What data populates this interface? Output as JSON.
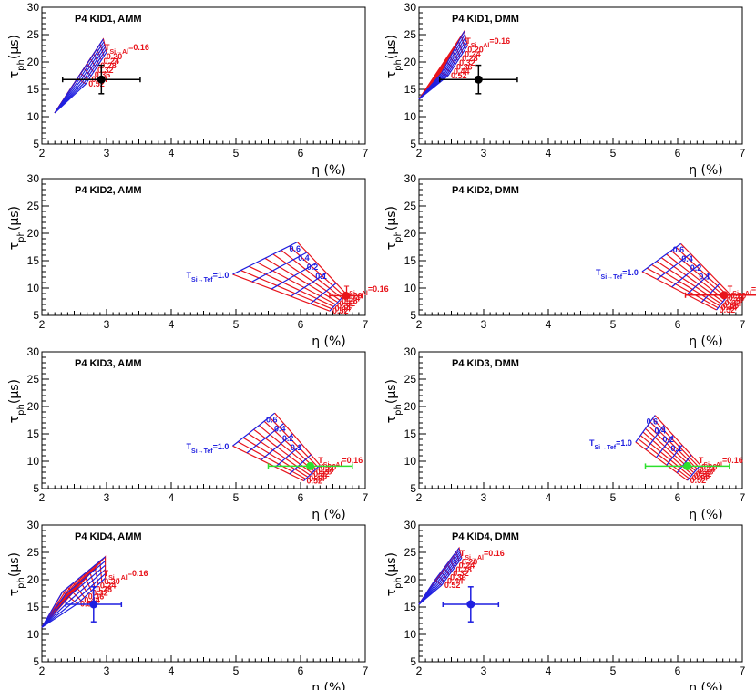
{
  "figure": {
    "xlabel": "η (%)",
    "ylabel_main": "τ",
    "ylabel_sub": "ph",
    "ylabel_unit": "(μs)"
  },
  "colors": {
    "al_lines": "#e8141b",
    "tef_lines": "#1f1fe0",
    "axis": "#000000"
  },
  "chart_data": [
    {
      "type": "line",
      "title": "P4 KID1, AMM",
      "xlabel": "η (%)",
      "ylabel": "τph(μs)",
      "xlim": [
        2,
        7
      ],
      "ylim": [
        5,
        30
      ],
      "x_ticks": [
        "2",
        "3",
        "4",
        "5",
        "6",
        "7"
      ],
      "y_ticks": [
        "5",
        "10",
        "15",
        "20",
        "25",
        "30"
      ],
      "grid": {
        "corners": {
          "tl": [
            2.95,
            24.2
          ],
          "bl": [
            2.55,
            17.0
          ],
          "tr": [
            3.0,
            21.8
          ],
          "br": [
            2.68,
            16.0
          ]
        },
        "apex": [
          2.2,
          10.7
        ],
        "n_al": 9,
        "n_tef": 6
      },
      "al_label_prefix": "T",
      "al_label_sub": "Si→Al",
      "al_first_value": "=0.16",
      "al_labels": [
        "0.20",
        "0.24",
        "0.28",
        "0.32",
        "0.36",
        "0.44",
        "0.52"
      ],
      "tef_label_prefix": "",
      "tef_label_sub": "",
      "tef_labels": [],
      "measurement": {
        "x": 2.92,
        "y": 16.8,
        "xerr": 0.6,
        "yerr": 2.6,
        "color": "#000000"
      }
    },
    {
      "type": "line",
      "title": "P4 KID1, DMM",
      "xlabel": "η (%)",
      "ylabel": "τph(μs)",
      "xlim": [
        2,
        7
      ],
      "ylim": [
        5,
        30
      ],
      "x_ticks": [
        "2",
        "3",
        "4",
        "5",
        "6",
        "7"
      ],
      "y_ticks": [
        "5",
        "10",
        "15",
        "20",
        "25",
        "30"
      ],
      "grid": {
        "corners": {
          "tl": [
            2.7,
            25.6
          ],
          "bl": [
            2.35,
            18.0
          ],
          "tr": [
            2.75,
            23.0
          ],
          "br": [
            2.45,
            17.5
          ]
        },
        "apex": [
          2.0,
          13.2
        ],
        "n_al": 9,
        "n_tef": 6
      },
      "al_label_prefix": "T",
      "al_label_sub": "Si→Al",
      "al_first_value": "=0.16",
      "al_labels": [
        "0.20",
        "0.24",
        "0.28",
        "0.32",
        "0.36",
        "0.44",
        "0.52"
      ],
      "tef_label_prefix": "",
      "tef_label_sub": "",
      "tef_labels": [],
      "measurement": {
        "x": 2.92,
        "y": 16.8,
        "xerr": 0.6,
        "yerr": 2.6,
        "color": "#000000"
      }
    },
    {
      "type": "line",
      "title": "P4 KID2, AMM",
      "xlabel": "η (%)",
      "ylabel": "τph(μs)",
      "xlim": [
        2,
        7
      ],
      "ylim": [
        5,
        30
      ],
      "x_ticks": [
        "2",
        "3",
        "4",
        "5",
        "6",
        "7"
      ],
      "y_ticks": [
        "5",
        "10",
        "15",
        "20",
        "25",
        "30"
      ],
      "grid": {
        "corners": {
          "tl": [
            5.95,
            18.4
          ],
          "bl": [
            4.95,
            12.5
          ],
          "tr": [
            6.7,
            9.0
          ],
          "br": [
            6.45,
            5.8
          ]
        },
        "n_al": 9,
        "n_tef": 6
      },
      "al_label_prefix": "T",
      "al_label_sub": "Si→Al",
      "al_first_value": "=0.16",
      "al_labels": [
        "0.20",
        "0.24",
        "0.28",
        "0.32",
        "0.36",
        "0.44",
        "0.52"
      ],
      "tef_label_prefix": "T",
      "tef_label_sub": "Si→Tef",
      "tef_first_value": "=1.0",
      "tef_labels": [
        "0.1",
        "0.2",
        "0.4",
        "0.6"
      ],
      "measurement": {
        "x": 6.7,
        "y": 8.6,
        "xerr": 0.25,
        "yerr": 0.0,
        "color": "#e8141b"
      }
    },
    {
      "type": "line",
      "title": "P4 KID2, DMM",
      "xlabel": "η (%)",
      "ylabel": "τph(μs)",
      "xlim": [
        2,
        7
      ],
      "ylim": [
        5,
        30
      ],
      "x_ticks": [
        "2",
        "3",
        "4",
        "5",
        "6",
        "7"
      ],
      "y_ticks": [
        "5",
        "10",
        "15",
        "20",
        "25",
        "30"
      ],
      "grid": {
        "corners": {
          "tl": [
            6.05,
            18.1
          ],
          "bl": [
            5.45,
            13.0
          ],
          "tr": [
            6.8,
            9.0
          ],
          "br": [
            6.6,
            6.0
          ]
        },
        "n_al": 9,
        "n_tef": 6
      },
      "al_label_prefix": "T",
      "al_label_sub": "Si→Al",
      "al_first_value": "=0.16",
      "al_labels": [
        "0.20",
        "0.24",
        "0.28",
        "0.32",
        "0.36",
        "0.44",
        "0.52"
      ],
      "tef_label_prefix": "T",
      "tef_label_sub": "Si→Tef",
      "tef_first_value": "=1.0",
      "tef_labels": [
        "0.1",
        "0.2",
        "0.4",
        "0.6"
      ],
      "measurement": {
        "x": 6.72,
        "y": 8.7,
        "xerr": 0.6,
        "yerr": 0.0,
        "color": "#e8141b"
      }
    },
    {
      "type": "line",
      "title": "P4 KID3, AMM",
      "xlabel": "η (%)",
      "ylabel": "τph(μs)",
      "xlim": [
        2,
        7
      ],
      "ylim": [
        5,
        30
      ],
      "x_ticks": [
        "2",
        "3",
        "4",
        "5",
        "6",
        "7"
      ],
      "y_ticks": [
        "5",
        "10",
        "15",
        "20",
        "25",
        "30"
      ],
      "grid": {
        "corners": {
          "tl": [
            5.6,
            18.8
          ],
          "bl": [
            4.95,
            12.8
          ],
          "tr": [
            6.3,
            9.3
          ],
          "br": [
            6.05,
            6.4
          ]
        },
        "n_al": 9,
        "n_tef": 6
      },
      "al_label_prefix": "T",
      "al_label_sub": "Si→Al",
      "al_first_value": "=0.16",
      "al_labels": [
        "0.20",
        "0.24",
        "0.28",
        "0.32",
        "0.36",
        "0.44",
        "0.52"
      ],
      "tef_label_prefix": "T",
      "tef_label_sub": "Si→Tef",
      "tef_first_value": "=1.0",
      "tef_labels": [
        "0.1",
        "0.2",
        "0.4",
        "0.6"
      ],
      "measurement": {
        "x": 6.15,
        "y": 9.1,
        "xerr": 0.65,
        "yerr": 0.0,
        "color": "#2de02d"
      }
    },
    {
      "type": "line",
      "title": "P4 KID3, DMM",
      "xlabel": "η (%)",
      "ylabel": "τph(μs)",
      "xlim": [
        2,
        7
      ],
      "ylim": [
        5,
        30
      ],
      "x_ticks": [
        "2",
        "3",
        "4",
        "5",
        "6",
        "7"
      ],
      "y_ticks": [
        "5",
        "10",
        "15",
        "20",
        "25",
        "30"
      ],
      "grid": {
        "corners": {
          "tl": [
            5.65,
            18.4
          ],
          "bl": [
            5.35,
            13.5
          ],
          "tr": [
            6.35,
            9.3
          ],
          "br": [
            6.15,
            6.5
          ]
        },
        "n_al": 9,
        "n_tef": 6
      },
      "al_label_prefix": "T",
      "al_label_sub": "Si→Al",
      "al_first_value": "=0.16",
      "al_labels": [
        "0.20",
        "0.24",
        "0.28",
        "0.32",
        "0.36",
        "0.44",
        "0.52"
      ],
      "tef_label_prefix": "T",
      "tef_label_sub": "Si→Tef",
      "tef_first_value": "=1.0",
      "tef_labels": [
        "0.1",
        "0.2",
        "0.4",
        "0.6"
      ],
      "measurement": {
        "x": 6.15,
        "y": 9.1,
        "xerr": 0.65,
        "yerr": 0.0,
        "color": "#2de02d"
      }
    },
    {
      "type": "line",
      "title": "P4 KID4, AMM",
      "xlabel": "η (%)",
      "ylabel": "τph(μs)",
      "xlim": [
        2,
        7
      ],
      "ylim": [
        5,
        30
      ],
      "x_ticks": [
        "2",
        "3",
        "4",
        "5",
        "6",
        "7"
      ],
      "y_ticks": [
        "5",
        "10",
        "15",
        "20",
        "25",
        "30"
      ],
      "grid": {
        "corners": {
          "tl": [
            2.98,
            24.2
          ],
          "bl": [
            2.32,
            17.8
          ],
          "tr": [
            2.98,
            20.3
          ],
          "br": [
            2.55,
            15.6
          ]
        },
        "apex": [
          2.0,
          11.3
        ],
        "n_al": 9,
        "n_tef": 6
      },
      "al_label_prefix": "T",
      "al_label_sub": "Si→Al",
      "al_first_value": "=0.16",
      "al_labels": [
        "0.20",
        "0.24",
        "0.28",
        "0.32",
        "0.36",
        "0.44",
        "0.52"
      ],
      "tef_label_prefix": "",
      "tef_label_sub": "",
      "tef_labels": [],
      "measurement": {
        "x": 2.8,
        "y": 15.5,
        "xerr": 0.43,
        "yerr": 3.2,
        "color": "#1f1fe0"
      }
    },
    {
      "type": "line",
      "title": "P4 KID4, DMM",
      "xlabel": "η (%)",
      "ylabel": "τph(μs)",
      "xlim": [
        2,
        7
      ],
      "ylim": [
        5,
        30
      ],
      "x_ticks": [
        "2",
        "3",
        "4",
        "5",
        "6",
        "7"
      ],
      "y_ticks": [
        "5",
        "10",
        "15",
        "20",
        "25",
        "30"
      ],
      "grid": {
        "corners": {
          "tl": [
            2.62,
            25.8
          ],
          "bl": [
            2.25,
            20.0
          ],
          "tr": [
            2.66,
            24.0
          ],
          "br": [
            2.35,
            19.0
          ]
        },
        "apex": [
          2.0,
          15.5
        ],
        "n_al": 9,
        "n_tef": 6
      },
      "al_label_prefix": "T",
      "al_label_sub": "Si→Al",
      "al_first_value": "=0.16",
      "al_labels": [
        "0.20",
        "0.24",
        "0.28",
        "0.32",
        "0.36",
        "0.44",
        "0.52"
      ],
      "tef_label_prefix": "",
      "tef_label_sub": "",
      "tef_labels": [],
      "measurement": {
        "x": 2.8,
        "y": 15.5,
        "xerr": 0.43,
        "yerr": 3.2,
        "color": "#1f1fe0"
      }
    }
  ]
}
